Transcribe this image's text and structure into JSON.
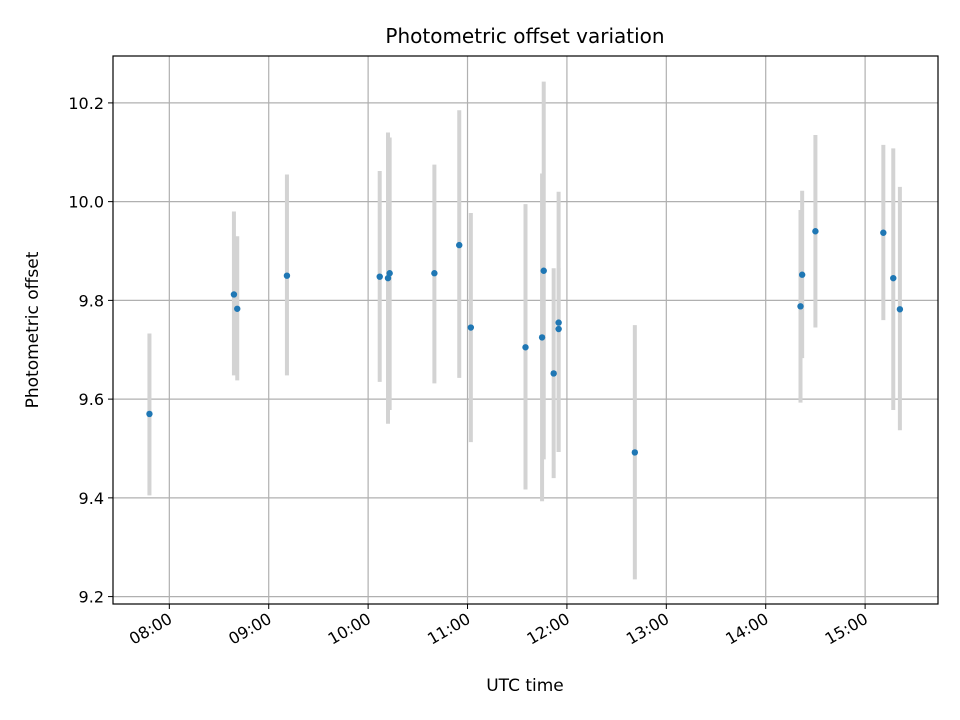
{
  "chart_data": {
    "type": "scatter",
    "title": "Photometric offset variation",
    "xlabel": "UTC time",
    "ylabel": "Photometric offset",
    "x_unit": "UTC time (HH:MM)",
    "xlim": [
      "07:26",
      "15:44"
    ],
    "ylim": [
      9.185,
      10.295
    ],
    "x_ticks": [
      "08:00",
      "09:00",
      "10:00",
      "11:00",
      "12:00",
      "13:00",
      "14:00",
      "15:00"
    ],
    "y_ticks": [
      9.2,
      9.4,
      9.6,
      9.8,
      10.0,
      10.2
    ],
    "grid": true,
    "legend": "none",
    "colors": {
      "points": "#1f77b4",
      "error_bars": "#d3d3d3",
      "grid": "#b0b0b0"
    },
    "points": [
      {
        "x": "07:48",
        "y": 9.57,
        "low": 9.405,
        "high": 9.733
      },
      {
        "x": "08:39",
        "y": 9.812,
        "low": 9.648,
        "high": 9.98
      },
      {
        "x": "08:41",
        "y": 9.783,
        "low": 9.638,
        "high": 9.93
      },
      {
        "x": "09:11",
        "y": 9.85,
        "low": 9.648,
        "high": 10.055
      },
      {
        "x": "10:07",
        "y": 9.848,
        "low": 9.635,
        "high": 10.062
      },
      {
        "x": "10:12",
        "y": 9.845,
        "low": 9.55,
        "high": 10.14
      },
      {
        "x": "10:13",
        "y": 9.855,
        "low": 9.578,
        "high": 10.13
      },
      {
        "x": "10:40",
        "y": 9.855,
        "low": 9.632,
        "high": 10.075
      },
      {
        "x": "10:55",
        "y": 9.912,
        "low": 9.643,
        "high": 10.185
      },
      {
        "x": "11:02",
        "y": 9.745,
        "low": 9.513,
        "high": 9.977
      },
      {
        "x": "11:35",
        "y": 9.705,
        "low": 9.417,
        "high": 9.995
      },
      {
        "x": "11:45",
        "y": 9.725,
        "low": 9.393,
        "high": 10.057
      },
      {
        "x": "11:46",
        "y": 9.86,
        "low": 9.478,
        "high": 10.243
      },
      {
        "x": "11:52",
        "y": 9.652,
        "low": 9.44,
        "high": 9.865
      },
      {
        "x": "11:55",
        "y": 9.742,
        "low": 9.493,
        "high": 9.865
      },
      {
        "x": "11:55",
        "y": 9.755,
        "low": 9.493,
        "high": 10.02
      },
      {
        "x": "12:41",
        "y": 9.492,
        "low": 9.235,
        "high": 9.75
      },
      {
        "x": "14:21",
        "y": 9.788,
        "low": 9.593,
        "high": 9.983
      },
      {
        "x": "14:22",
        "y": 9.852,
        "low": 9.683,
        "high": 10.022
      },
      {
        "x": "14:30",
        "y": 9.94,
        "low": 9.745,
        "high": 10.135
      },
      {
        "x": "15:11",
        "y": 9.937,
        "low": 9.76,
        "high": 10.115
      },
      {
        "x": "15:17",
        "y": 9.845,
        "low": 9.578,
        "high": 10.108
      },
      {
        "x": "15:21",
        "y": 9.782,
        "low": 9.537,
        "high": 10.03
      }
    ]
  }
}
